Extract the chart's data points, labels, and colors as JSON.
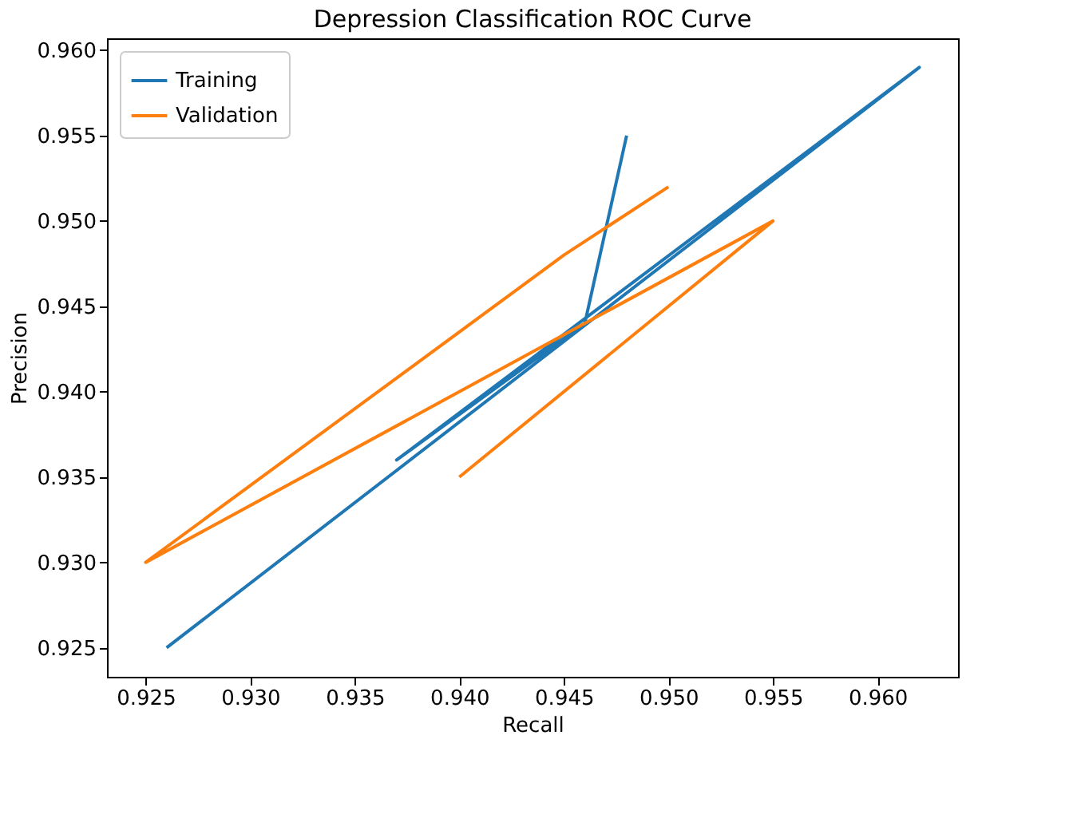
{
  "chart_data": {
    "type": "line",
    "title": "Depression Classification ROC Curve",
    "xlabel": "Recall",
    "ylabel": "Precision",
    "series": [
      {
        "name": "Training",
        "color": "#1f77b4",
        "x": [
          0.926,
          0.962,
          0.937,
          0.946,
          0.948
        ],
        "values": [
          0.925,
          0.959,
          0.936,
          0.944,
          0.955
        ]
      },
      {
        "name": "Validation",
        "color": "#ff7f0e",
        "x": [
          0.95,
          0.945,
          0.925,
          0.955,
          0.94
        ],
        "values": [
          0.952,
          0.948,
          0.93,
          0.95,
          0.935
        ]
      }
    ],
    "xlim": [
      0.92315,
      0.96385
    ],
    "ylim": [
      0.9233,
      0.9607
    ],
    "xticks": [
      0.925,
      {
        "value": 0.93,
        "label": "0.930"
      },
      0.935,
      {
        "value": 0.94,
        "label": "0.940"
      },
      0.945,
      {
        "value": 0.95,
        "label": "0.950"
      },
      0.955,
      {
        "value": 0.96,
        "label": "0.960"
      }
    ],
    "yticks": [
      0.925,
      {
        "value": 0.93,
        "label": "0.930"
      },
      0.935,
      {
        "value": 0.94,
        "label": "0.940"
      },
      0.945,
      {
        "value": 0.95,
        "label": "0.950"
      },
      0.955,
      {
        "value": 0.96,
        "label": "0.960"
      }
    ],
    "grid": false,
    "legend": "top left",
    "line_style": "solid"
  }
}
